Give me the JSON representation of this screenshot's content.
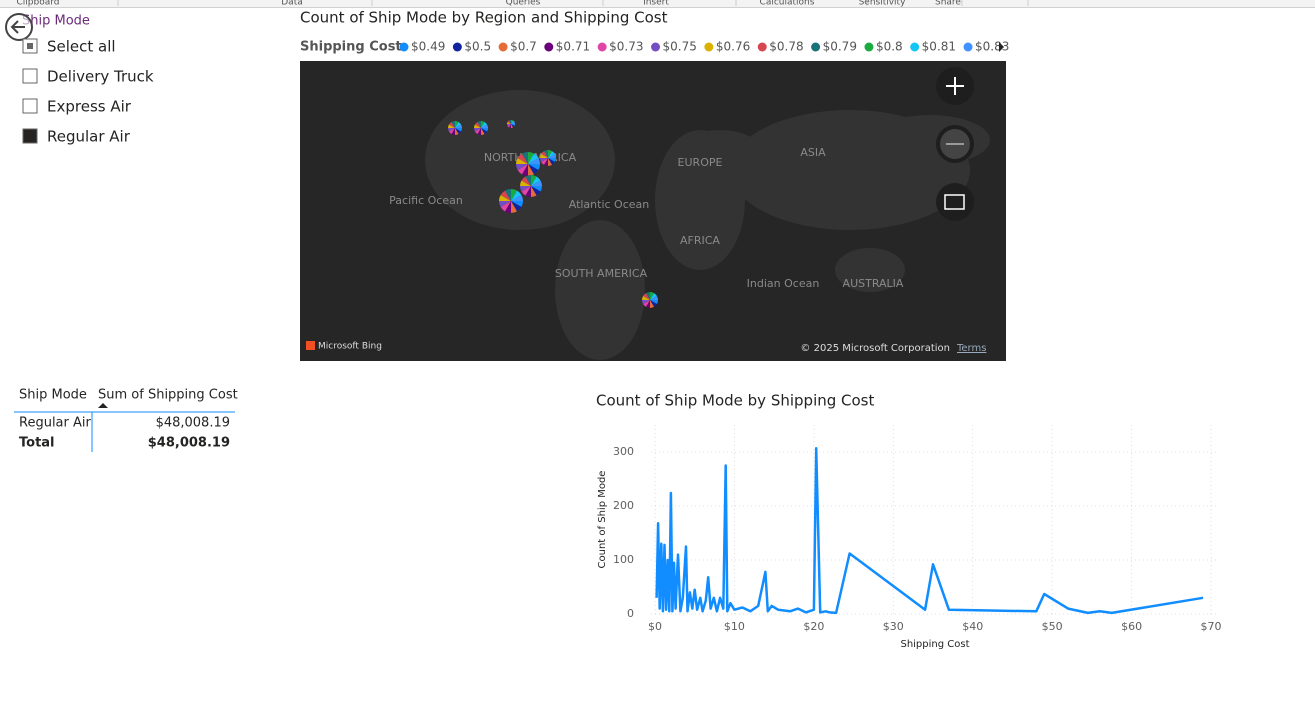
{
  "ribbon": {
    "groups": [
      "Clipboard",
      "Data",
      "Queries",
      "Insert",
      "Calculations",
      "Sensitivity",
      "Share"
    ]
  },
  "slicer": {
    "title": "Ship Mode",
    "items": [
      {
        "label": "Select all",
        "state": "partial"
      },
      {
        "label": "Delivery Truck",
        "state": "unchecked"
      },
      {
        "label": "Express Air",
        "state": "unchecked"
      },
      {
        "label": "Regular Air",
        "state": "checked"
      }
    ]
  },
  "table": {
    "headers": [
      "Ship Mode",
      "Sum of Shipping Cost"
    ],
    "rows": [
      [
        "Regular Air",
        "$48,008.19"
      ]
    ],
    "total": [
      "Total",
      "$48,008.19"
    ]
  },
  "map": {
    "title": "Count of Ship Mode by Region and Shipping Cost",
    "legend_title": "Shipping Cost",
    "legend": [
      {
        "name": "$0.49",
        "color": "#118dff"
      },
      {
        "name": "$0.5",
        "color": "#12239e"
      },
      {
        "name": "$0.7",
        "color": "#e66c37"
      },
      {
        "name": "$0.71",
        "color": "#6b007b"
      },
      {
        "name": "$0.73",
        "color": "#e044a7"
      },
      {
        "name": "$0.75",
        "color": "#744ec2"
      },
      {
        "name": "$0.76",
        "color": "#d9b300"
      },
      {
        "name": "$0.78",
        "color": "#d64550"
      },
      {
        "name": "$0.79",
        "color": "#197278"
      },
      {
        "name": "$0.8",
        "color": "#1aab40"
      },
      {
        "name": "$0.81",
        "color": "#15c6f4"
      },
      {
        "name": "$0.83",
        "color": "#4092ff"
      }
    ],
    "places": [
      "NORTH AMERICA",
      "EUROPE",
      "ASIA",
      "Pacific Ocean",
      "Atlantic Ocean",
      "AFRICA",
      "SOUTH AMERICA",
      "Indian Ocean",
      "AUSTRALIA"
    ],
    "brand": "Microsoft Bing",
    "copyright": "© 2025 Microsoft Corporation",
    "terms": "Terms"
  },
  "chart_data": {
    "type": "line",
    "title": "Count of Ship Mode by Shipping Cost",
    "x_label": "Shipping Cost",
    "y_label": "Count of Ship Mode",
    "color": "#118dff",
    "x": [
      0.2,
      0.4,
      0.6,
      0.8,
      1.0,
      1.2,
      1.4,
      1.6,
      1.8,
      2.0,
      2.2,
      2.4,
      2.6,
      2.9,
      3.2,
      3.5,
      3.9,
      4.1,
      4.4,
      4.7,
      5.0,
      5.3,
      5.7,
      6.0,
      6.4,
      6.7,
      7.0,
      7.4,
      7.8,
      8.2,
      8.6,
      8.9,
      9.1,
      9.5,
      10,
      11,
      12,
      13,
      13.9,
      14.2,
      14.7,
      15.5,
      17,
      18,
      19,
      20,
      20.3,
      20.8,
      21.5,
      22,
      22.8,
      24.5,
      34,
      35,
      37,
      48,
      49,
      52,
      54.5,
      56,
      57.5,
      69
    ],
    "values": [
      30,
      168,
      10,
      130,
      5,
      128,
      8,
      100,
      5,
      224,
      5,
      95,
      10,
      110,
      5,
      30,
      125,
      5,
      40,
      10,
      45,
      8,
      30,
      5,
      25,
      68,
      10,
      30,
      5,
      30,
      10,
      275,
      5,
      20,
      8,
      12,
      5,
      15,
      78,
      5,
      15,
      8,
      5,
      10,
      3,
      8,
      307,
      3,
      5,
      3,
      2,
      112,
      8,
      92,
      8,
      5,
      37,
      10,
      2,
      5,
      2,
      30
    ],
    "xlim": [
      -0.5,
      71
    ],
    "ylim": [
      0,
      350
    ],
    "xticks": [
      {
        "value": 0,
        "label": "$0"
      },
      {
        "value": 10,
        "label": "$10"
      },
      {
        "value": 20,
        "label": "$20"
      },
      {
        "value": 30,
        "label": "$30"
      },
      {
        "value": 40,
        "label": "$40"
      },
      {
        "value": 50,
        "label": "$50"
      },
      {
        "value": 60,
        "label": "$60"
      },
      {
        "value": 70,
        "label": "$70"
      }
    ],
    "yticks": [
      0,
      100,
      200,
      300
    ],
    "grid": true
  }
}
